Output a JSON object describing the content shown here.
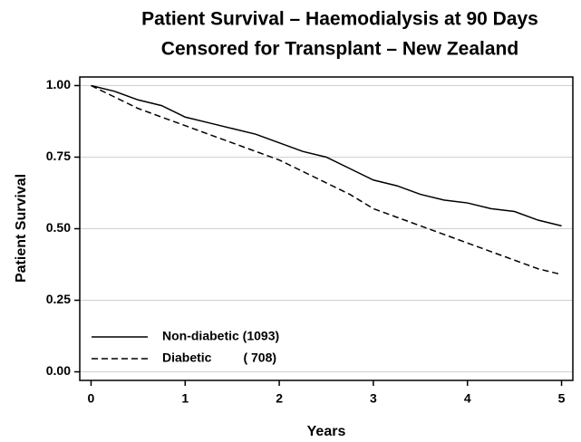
{
  "chart_data": {
    "type": "line",
    "title": "Patient Survival – Haemodialysis at 90 Days",
    "subtitle": "Censored for Transplant – New Zealand",
    "x_label": "Years",
    "y_label": "Patient Survival",
    "x": [
      0,
      0.25,
      0.5,
      0.75,
      1,
      1.25,
      1.5,
      1.75,
      2,
      2.25,
      2.5,
      2.75,
      3,
      3.25,
      3.5,
      3.75,
      4,
      4.25,
      4.5,
      4.75,
      5
    ],
    "series": [
      {
        "name": "Non-diabetic (1093)",
        "color": "#000000",
        "line_style": "solid",
        "values": [
          1.0,
          0.98,
          0.95,
          0.93,
          0.89,
          0.87,
          0.85,
          0.83,
          0.8,
          0.77,
          0.75,
          0.71,
          0.67,
          0.65,
          0.62,
          0.6,
          0.59,
          0.57,
          0.56,
          0.53,
          0.51
        ]
      },
      {
        "name": "Diabetic         ( 708)",
        "color": "#000000",
        "line_style": "dashed",
        "values": [
          1.0,
          0.96,
          0.92,
          0.89,
          0.86,
          0.83,
          0.8,
          0.77,
          0.74,
          0.7,
          0.66,
          0.62,
          0.57,
          0.54,
          0.51,
          0.48,
          0.45,
          0.42,
          0.39,
          0.36,
          0.34
        ]
      }
    ],
    "xlim": [
      -0.12,
      5.12
    ],
    "xticks": [
      0,
      1,
      2,
      3,
      4,
      5
    ],
    "ylim": [
      -0.03,
      1.03
    ],
    "yticks": [
      {
        "value": 0,
        "label": "0.00"
      },
      {
        "value": 0.25,
        "label": "0.25"
      },
      {
        "value": 0.5,
        "label": "0.50"
      },
      {
        "value": 0.75,
        "label": "0.75"
      },
      {
        "value": 1,
        "label": "1.00"
      }
    ],
    "grid": true,
    "legend": "lower left"
  }
}
